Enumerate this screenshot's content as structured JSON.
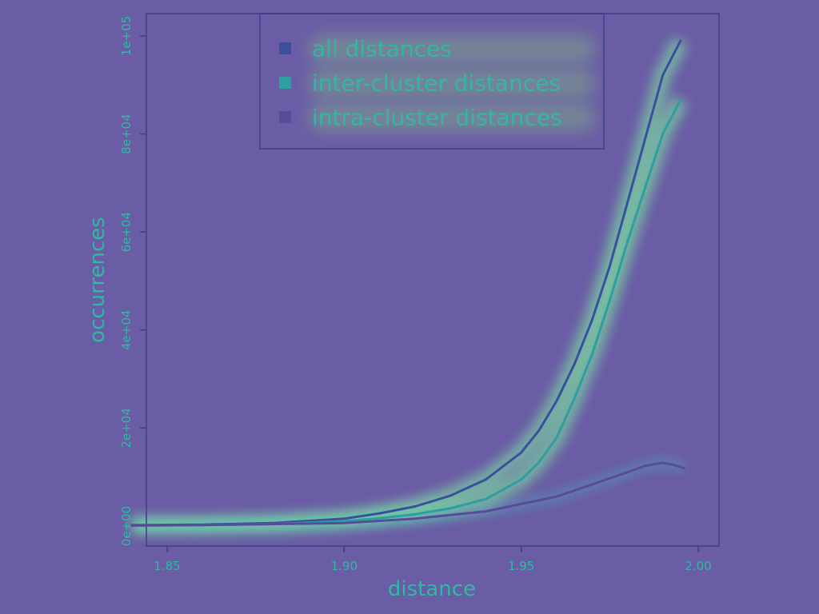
{
  "chart_data": {
    "type": "line",
    "xlabel": "distance",
    "ylabel": "occurrences",
    "xlim": [
      1.84,
      2.0
    ],
    "ylim": [
      -4000,
      103000
    ],
    "xticks": [
      {
        "value": 1.85,
        "label": "1.85"
      },
      {
        "value": 1.9,
        "label": "1.90"
      },
      {
        "value": 1.95,
        "label": "1.95"
      },
      {
        "value": 2.0,
        "label": "2.00"
      }
    ],
    "yticks": [
      {
        "value": 0,
        "label": "0e+00"
      },
      {
        "value": 20000,
        "label": "2e+04"
      },
      {
        "value": 40000,
        "label": "4e+04"
      },
      {
        "value": 60000,
        "label": "6e+04"
      },
      {
        "value": 80000,
        "label": "8e+04"
      },
      {
        "value": 100000,
        "label": "1e+05"
      }
    ],
    "legend_position": "top",
    "series": [
      {
        "name": "all distances",
        "color": "#3b4f9f",
        "x": [
          1.84,
          1.86,
          1.88,
          1.9,
          1.91,
          1.92,
          1.93,
          1.94,
          1.95,
          1.955,
          1.96,
          1.965,
          1.97,
          1.975,
          1.98,
          1.985,
          1.99,
          1.995
        ],
        "y": [
          200,
          300,
          600,
          1500,
          2600,
          4000,
          6200,
          9500,
          15000,
          19500,
          25500,
          33000,
          42000,
          53000,
          66000,
          79000,
          92000,
          99000
        ]
      },
      {
        "name": "inter-cluster distances",
        "color": "#2e9ea0",
        "x": [
          1.84,
          1.86,
          1.88,
          1.9,
          1.91,
          1.92,
          1.93,
          1.94,
          1.95,
          1.955,
          1.96,
          1.965,
          1.97,
          1.975,
          1.98,
          1.985,
          1.99,
          1.995
        ],
        "y": [
          100,
          200,
          400,
          1000,
          1600,
          2400,
          3600,
          5500,
          9500,
          13000,
          18000,
          26000,
          35000,
          46000,
          58000,
          69000,
          80000,
          87000
        ]
      },
      {
        "name": "intra-cluster distances",
        "color": "#5a4a9a",
        "x": [
          1.84,
          1.86,
          1.88,
          1.9,
          1.92,
          1.94,
          1.95,
          1.96,
          1.97,
          1.98,
          1.985,
          1.99,
          1.993,
          1.996
        ],
        "y": [
          100,
          200,
          400,
          600,
          1500,
          3000,
          4500,
          6000,
          8500,
          11000,
          12300,
          12900,
          12500,
          11800
        ]
      }
    ]
  }
}
